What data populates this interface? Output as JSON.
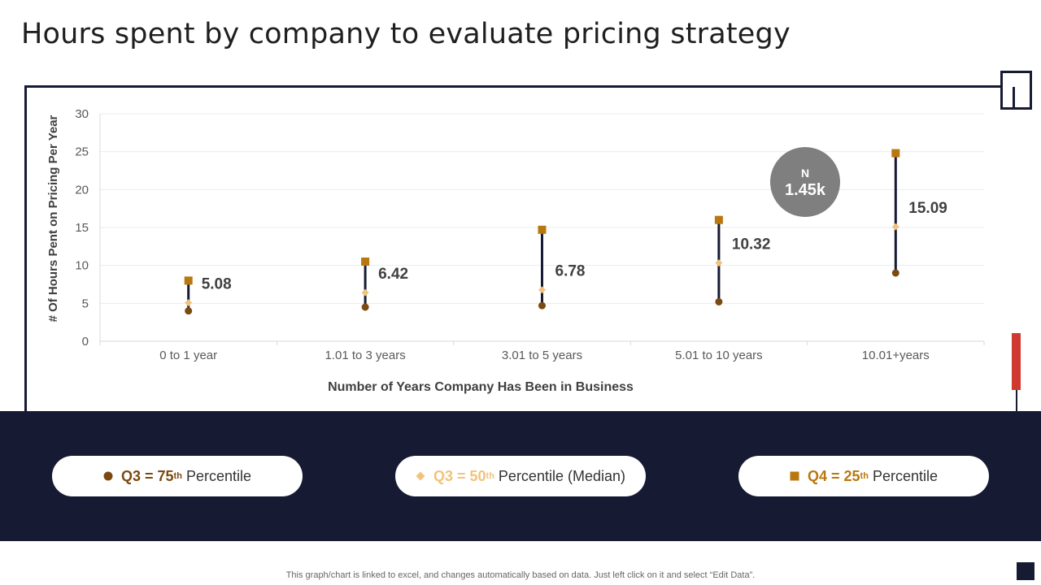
{
  "page": {
    "title": "Hours spent by company to evaluate pricing strategy",
    "footer_note": "This graph/chart is linked to excel,  and changes automatically based on data. Just left click on it and select “Edit Data”."
  },
  "badge": {
    "label": "N",
    "value": "1.45k",
    "color": "#7f7f7f"
  },
  "legend": [
    {
      "marker": "circle",
      "color": "#7a4a10",
      "q_text": "Q3 = 75",
      "sup": "th",
      "rest": "Percentile"
    },
    {
      "marker": "diamond",
      "color": "#f2c27a",
      "q_text": "Q3 = 50",
      "sup": "th",
      "rest": "Percentile (Median)"
    },
    {
      "marker": "square",
      "color": "#b8770f",
      "q_text": "Q4 = 25",
      "sup": "th",
      "rest": "Percentile"
    }
  ],
  "colors": {
    "navy": "#161a33",
    "q75": "#7a4a10",
    "median": "#f2c27a",
    "q25": "#b8770f",
    "accent_red": "#d0392f"
  },
  "chart_data": {
    "type": "scatter",
    "xlabel": "Number of Years Company Has Been in Business",
    "ylabel": "# Of Hours Pent on Pricing Per Year",
    "ylim": [
      0,
      30
    ],
    "yticks": [
      0,
      5,
      10,
      15,
      20,
      25,
      30
    ],
    "grid": true,
    "categories": [
      "0 to 1 year",
      "1.01 to 3 years",
      "3.01 to 5 years",
      "5.01 to 10 years",
      "10.01+years"
    ],
    "series": [
      {
        "name": "Q3 = 75th Percentile",
        "marker": "circle",
        "values": [
          4.0,
          4.5,
          4.7,
          5.2,
          9.0
        ]
      },
      {
        "name": "Q3 = 50th Percentile (Median)",
        "marker": "diamond",
        "values": [
          5.08,
          6.42,
          6.78,
          10.32,
          15.09
        ]
      },
      {
        "name": "Q4 = 25th Percentile",
        "marker": "square",
        "values": [
          8.0,
          10.5,
          14.7,
          16.0,
          24.8
        ]
      }
    ],
    "data_labels": [
      "5.08",
      "6.42",
      "6.78",
      "10.32",
      "15.09"
    ]
  }
}
